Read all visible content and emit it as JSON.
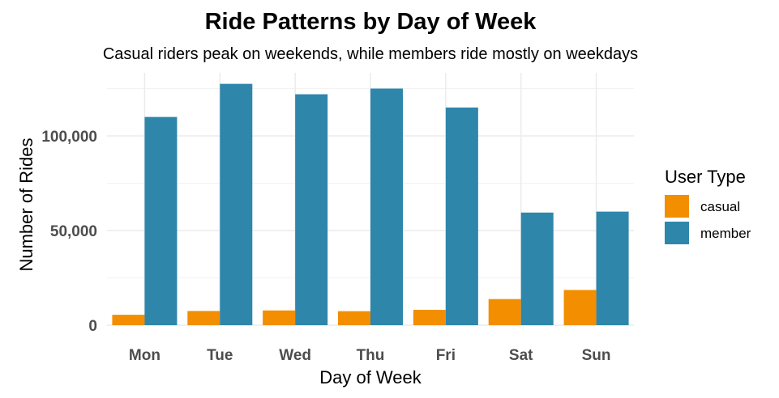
{
  "chart_data": {
    "type": "bar",
    "title": "Ride Patterns by Day of Week",
    "subtitle": "Casual riders peak on weekends, while members ride mostly on weekdays",
    "xlabel": "Day of Week",
    "ylabel": "Number of Rides",
    "categories": [
      "Mon",
      "Tue",
      "Wed",
      "Thu",
      "Fri",
      "Sat",
      "Sun"
    ],
    "series": [
      {
        "name": "casual",
        "color": "#F28E00",
        "values": [
          5500,
          7500,
          7800,
          7400,
          8100,
          13800,
          18600
        ]
      },
      {
        "name": "member",
        "color": "#2E86AB",
        "values": [
          110000,
          127500,
          122000,
          125000,
          115000,
          59500,
          60000
        ]
      }
    ],
    "ylim": [
      0,
      133000
    ],
    "yticks": [
      0,
      50000,
      100000
    ],
    "ytick_labels": [
      "0",
      "50,000",
      "100,000"
    ],
    "legend": {
      "title": "User Type",
      "position": "right"
    },
    "grid": true
  }
}
